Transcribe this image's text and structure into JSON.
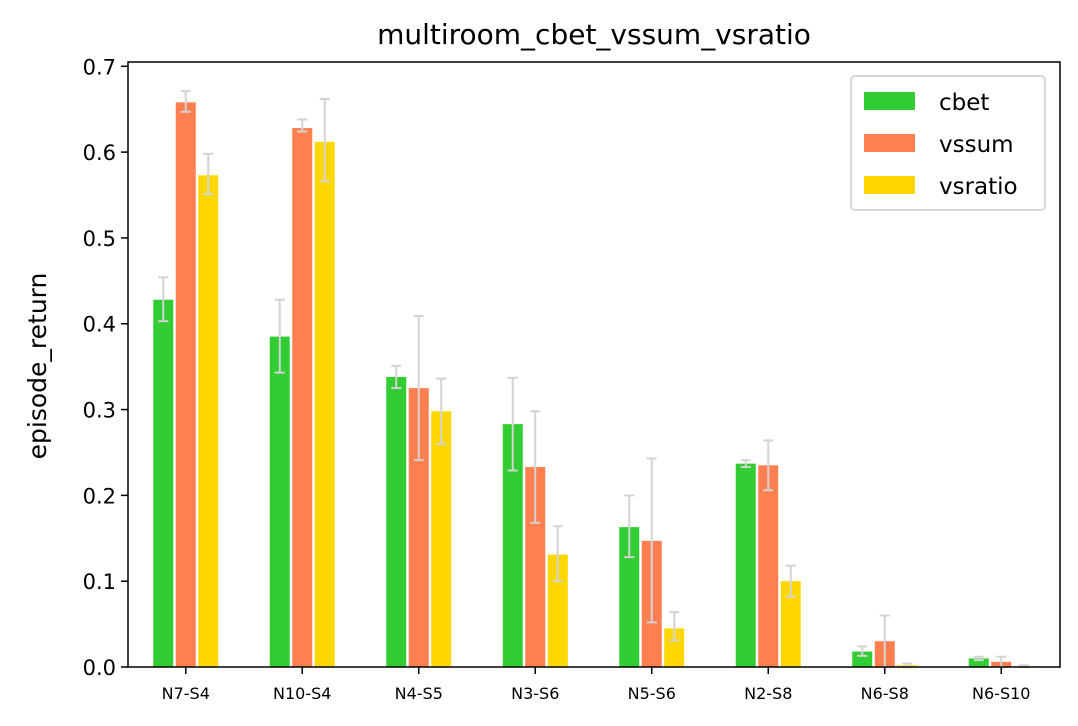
{
  "chart_data": {
    "type": "bar",
    "title": "multiroom_cbet_vssum_vsratio",
    "xlabel": "",
    "ylabel": "episode_return",
    "ylim": [
      0,
      0.705
    ],
    "yticks": [
      "0.0",
      "0.1",
      "0.2",
      "0.3",
      "0.4",
      "0.5",
      "0.6",
      "0.7"
    ],
    "categories": [
      "N7-S4",
      "N10-S4",
      "N4-S5",
      "N3-S6",
      "N5-S6",
      "N2-S8",
      "N6-S8",
      "N6-S10"
    ],
    "series": [
      {
        "name": "cbet",
        "color": "#32cd32",
        "values": [
          0.428,
          0.385,
          0.338,
          0.283,
          0.163,
          0.237,
          0.018,
          0.01
        ],
        "err_low": [
          0.403,
          0.343,
          0.325,
          0.229,
          0.128,
          0.233,
          0.013,
          0.008
        ],
        "err_high": [
          0.454,
          0.428,
          0.351,
          0.337,
          0.2,
          0.241,
          0.024,
          0.012
        ]
      },
      {
        "name": "vssum",
        "color": "#ff7f50",
        "values": [
          0.658,
          0.628,
          0.325,
          0.233,
          0.147,
          0.235,
          0.03,
          0.006
        ],
        "err_low": [
          0.647,
          0.624,
          0.241,
          0.168,
          0.052,
          0.206,
          0.0,
          0.0
        ],
        "err_high": [
          0.671,
          0.638,
          0.409,
          0.298,
          0.243,
          0.264,
          0.06,
          0.012
        ]
      },
      {
        "name": "vsratio",
        "color": "#ffd700",
        "values": [
          0.573,
          0.612,
          0.298,
          0.131,
          0.045,
          0.1,
          0.002,
          0.001
        ],
        "err_low": [
          0.551,
          0.566,
          0.26,
          0.1,
          0.031,
          0.082,
          0.0,
          0.0
        ],
        "err_high": [
          0.598,
          0.662,
          0.336,
          0.164,
          0.064,
          0.118,
          0.004,
          0.002
        ]
      }
    ],
    "legend_position": "top-right",
    "grid": false,
    "error_bar_color": "#d3d3d3"
  }
}
